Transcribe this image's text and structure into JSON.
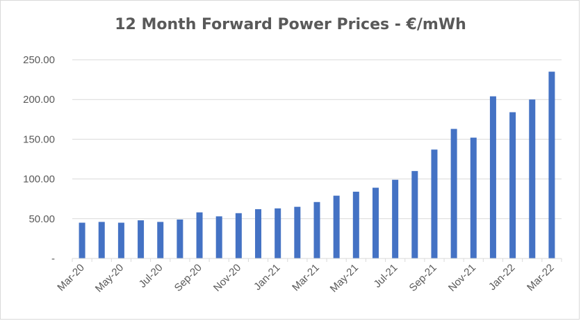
{
  "chart_data": {
    "type": "bar",
    "title": "12 Month Forward Power Prices - €/mWh",
    "xlabel": "",
    "ylabel": "",
    "ylim": [
      0,
      250
    ],
    "yticks": [
      0,
      50,
      100,
      150,
      200,
      250
    ],
    "ytick_labels": [
      "-",
      "50.00",
      "100.00",
      "150.00",
      "200.00",
      "250.00"
    ],
    "grid": "horizontal",
    "legend": "none",
    "bar_color": "#4472c4",
    "categories": [
      "Mar-20",
      "Apr-20",
      "May-20",
      "Jun-20",
      "Jul-20",
      "Aug-20",
      "Sep-20",
      "Oct-20",
      "Nov-20",
      "Dec-20",
      "Jan-21",
      "Feb-21",
      "Mar-21",
      "Apr-21",
      "May-21",
      "Jun-21",
      "Jul-21",
      "Aug-21",
      "Sep-21",
      "Oct-21",
      "Nov-21",
      "Dec-21",
      "Jan-22",
      "Feb-22",
      "Mar-22"
    ],
    "xtick_labels": [
      "Mar-20",
      "",
      "May-20",
      "",
      "Jul-20",
      "",
      "Sep-20",
      "",
      "Nov-20",
      "",
      "Jan-21",
      "",
      "Mar-21",
      "",
      "May-21",
      "",
      "Jul-21",
      "",
      "Sep-21",
      "",
      "Nov-21",
      "",
      "Jan-22",
      "",
      "Mar-22"
    ],
    "values": [
      45,
      46,
      45,
      48,
      46,
      49,
      58,
      53,
      57,
      62,
      63,
      65,
      71,
      79,
      84,
      89,
      99,
      110,
      137,
      163,
      152,
      204,
      184,
      200,
      235
    ]
  }
}
